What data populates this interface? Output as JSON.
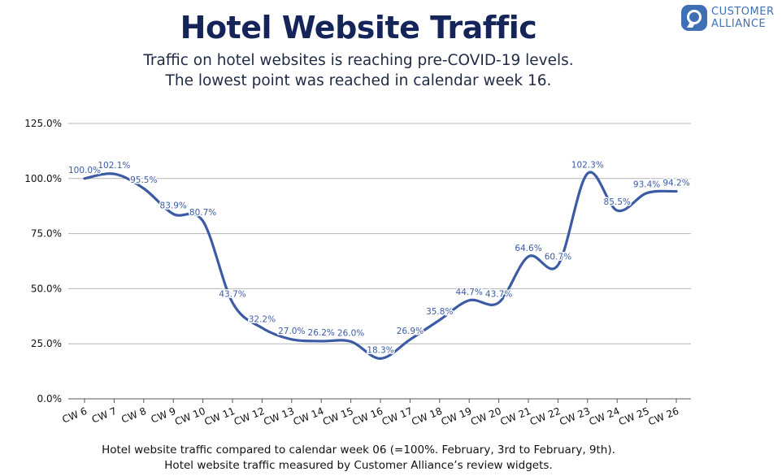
{
  "title": "Hotel Website Traffic",
  "subtitle": [
    "Traffic on hotel websites is reaching pre-COVID-19 levels.",
    "The lowest point was reached in calendar week 16."
  ],
  "logo": {
    "line1": "CUSTOMER",
    "line2": "ALLIANCE",
    "icon": "speech-bubble-icon",
    "color": "#3f6fb5"
  },
  "footnotes": [
    "Hotel website traffic compared to calendar week 06 (=100%. February, 3rd to February, 9th).",
    "Hotel website traffic measured by Customer Alliance’s review widgets."
  ],
  "chart_data": {
    "type": "line",
    "title": "Hotel Website Traffic",
    "xlabel": "",
    "ylabel": "",
    "categories": [
      "CW 6",
      "CW 7",
      "CW 8",
      "CW 9",
      "CW 10",
      "CW 11",
      "CW 12",
      "CW 13",
      "CW 14",
      "CW 15",
      "CW 16",
      "CW 17",
      "CW 18",
      "CW 19",
      "CW 20",
      "CW 21",
      "CW 22",
      "CW 23",
      "CW 24",
      "CW 25",
      "CW 26"
    ],
    "series": [
      {
        "values": [
          100.0,
          102.1,
          95.5,
          83.9,
          80.7,
          43.7,
          32.2,
          27.0,
          26.2,
          26.0,
          18.3,
          26.9,
          35.8,
          44.7,
          43.7,
          64.6,
          60.7,
          102.3,
          85.5,
          93.4,
          94.2
        ],
        "labels": [
          "100.0%",
          "102.1%",
          "95.5%",
          "83.9%",
          "80.7%",
          "43.7%",
          "32.2%",
          "27.0%",
          "26.2%",
          "26.0%",
          "18.3%",
          "26.9%",
          "35.8%",
          "44.7%",
          "43.7%",
          "64.6%",
          "60.7%",
          "102.3%",
          "85.5%",
          "93.4%",
          "94.2%"
        ],
        "color": "#3b5ba5"
      }
    ],
    "yticks": [
      "0.0%",
      "25.0%",
      "50.0%",
      "75.0%",
      "100.0%",
      "125.0%"
    ],
    "ylim": [
      0,
      125
    ],
    "grid": true,
    "gridColor": "#b5b5b5",
    "labelColor": "#3b5ba5"
  }
}
